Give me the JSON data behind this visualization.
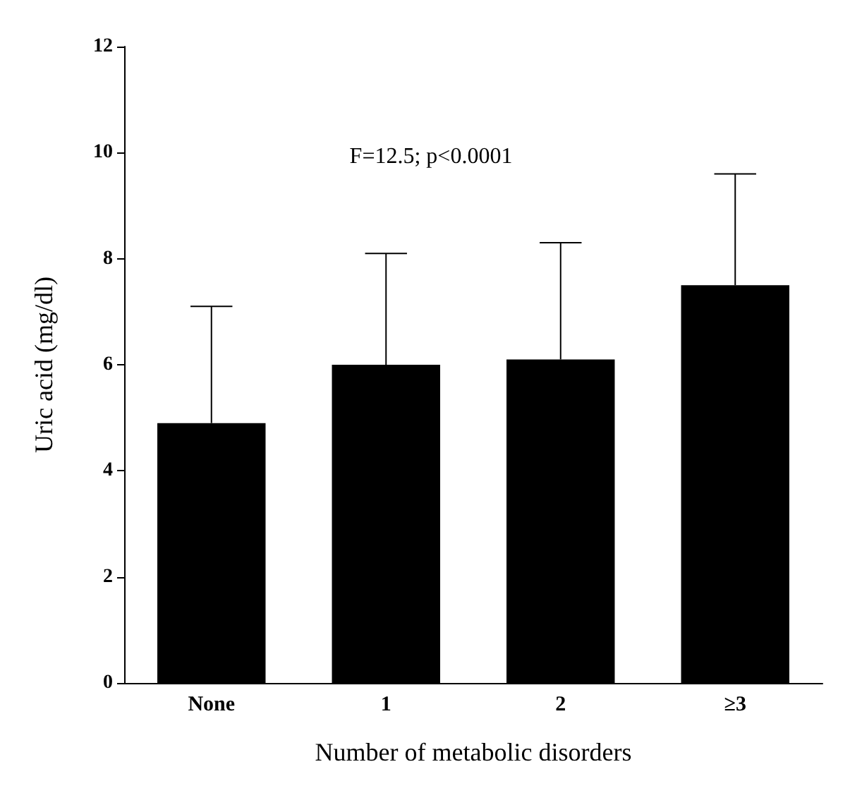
{
  "chart_data": {
    "type": "bar",
    "xlabel": "Number of metabolic disorders",
    "ylabel": "Uric acid (mg/dl)",
    "categories": [
      "None",
      "1",
      "2",
      "≥3"
    ],
    "values": [
      4.9,
      6.0,
      6.1,
      7.5
    ],
    "errors": [
      [
        4.9,
        7.1
      ],
      [
        6.0,
        8.1
      ],
      [
        6.1,
        8.3
      ],
      [
        7.5,
        9.6
      ]
    ],
    "color": "#000000",
    "ylim": [
      0,
      12
    ],
    "yticks": [
      0,
      2,
      4,
      6,
      8,
      10,
      12
    ],
    "grid": false,
    "annotations": [
      "F=12.5; p<0.0001"
    ]
  }
}
